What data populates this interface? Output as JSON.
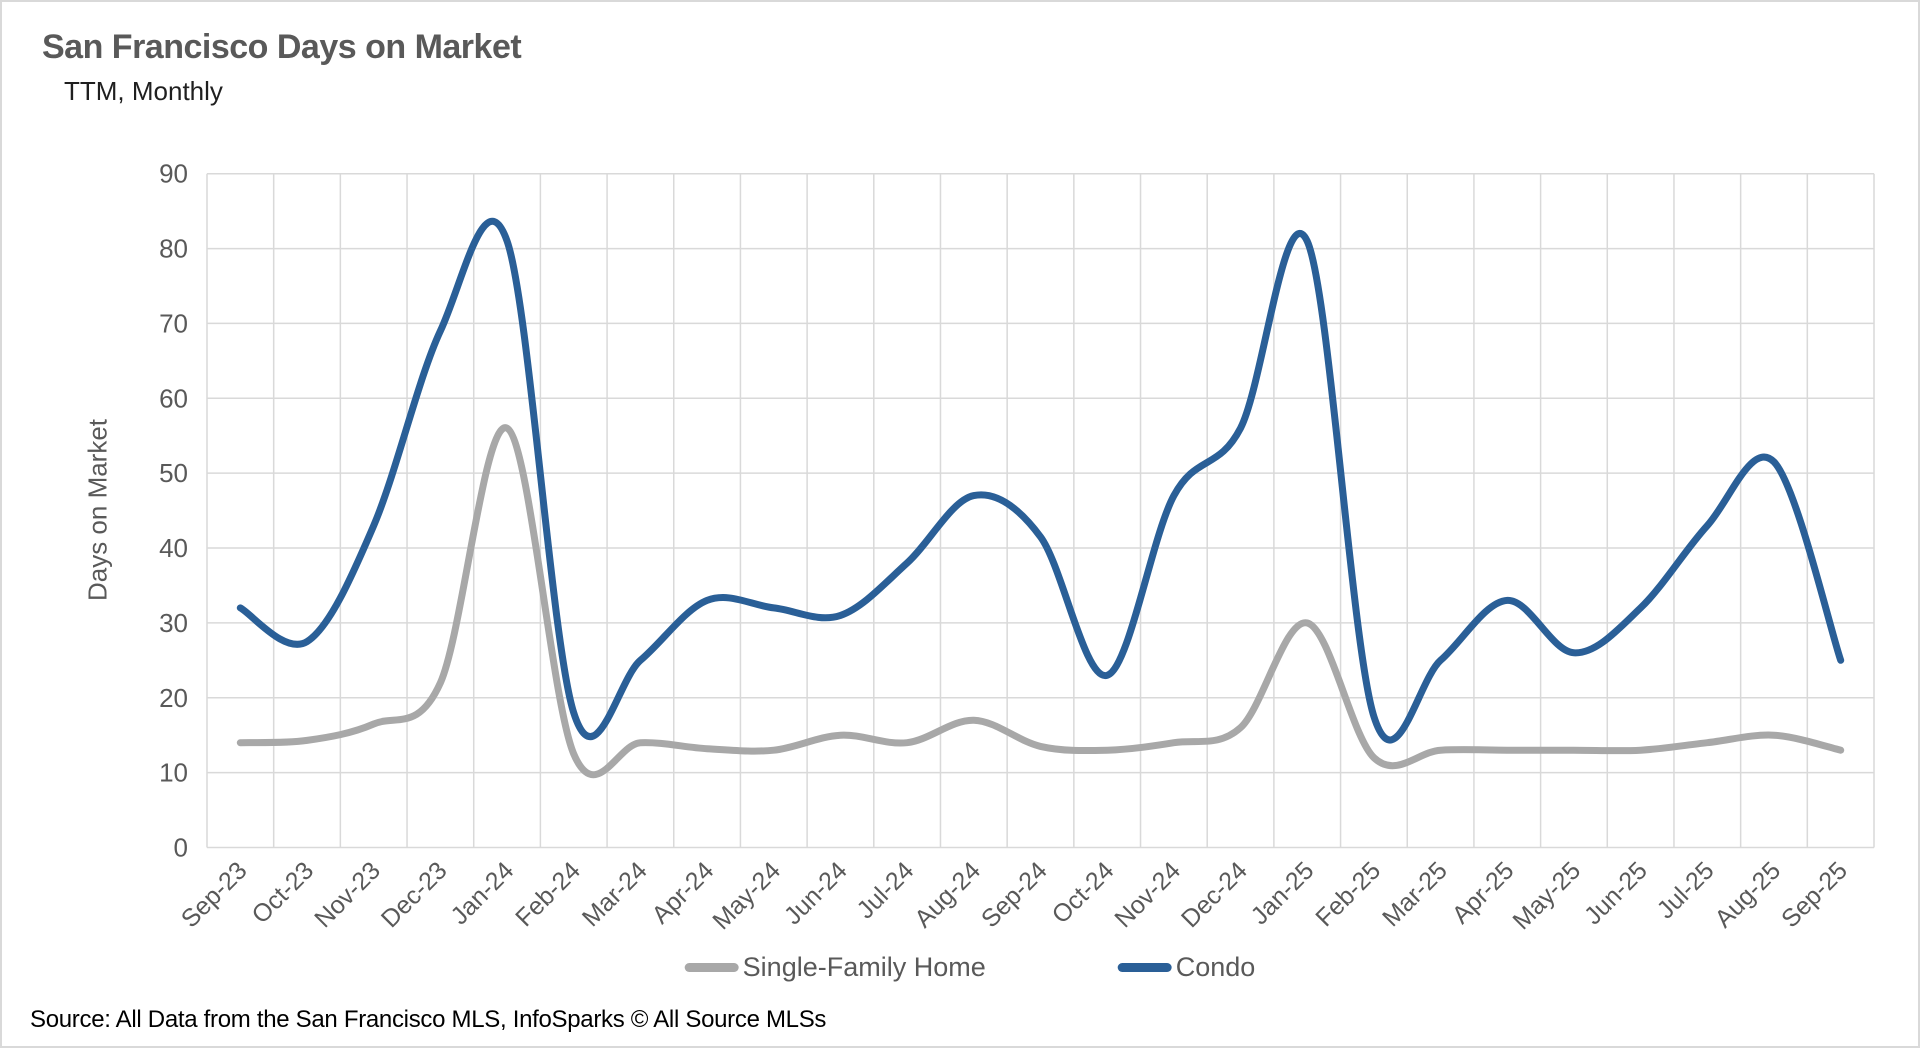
{
  "header": {
    "title": "San Francisco Days on Market",
    "subtitle": "TTM, Monthly"
  },
  "footer": {
    "source": "Source: All Data from the San Francisco MLS, InfoSparks © All Source MLSs"
  },
  "colors": {
    "single_family": "#a8a8a8",
    "condo": "#2a5f97",
    "gridline": "#d9d9d9",
    "axis_text": "#595959",
    "title_text": "#595959"
  },
  "chart_data": {
    "type": "line",
    "title": "San Francisco Days on Market",
    "subtitle": "TTM, Monthly",
    "xlabel": "",
    "ylabel": "Days on Market",
    "ylim": [
      0,
      90
    ],
    "ytick_step": 10,
    "grid": true,
    "smoothed": true,
    "legend_position": "bottom",
    "categories": [
      "Sep-23",
      "Oct-23",
      "Nov-23",
      "Dec-23",
      "Jan-24",
      "Feb-24",
      "Mar-24",
      "Apr-24",
      "May-24",
      "Jun-24",
      "Jul-24",
      "Aug-24",
      "Sep-24",
      "Oct-24",
      "Nov-24",
      "Dec-24",
      "Jan-25",
      "Feb-25",
      "Mar-25",
      "Apr-25",
      "May-25",
      "Jun-25",
      "Jul-25",
      "Aug-25",
      "Sep-25"
    ],
    "series": [
      {
        "name": "Single-Family Home",
        "color": "#a8a8a8",
        "values": [
          14,
          14.3,
          16.5,
          22,
          56,
          12.5,
          14,
          13.2,
          13,
          15,
          14,
          17,
          13.5,
          13,
          14,
          16,
          30,
          12,
          13,
          13,
          13,
          13,
          14,
          15,
          13
        ]
      },
      {
        "name": "Condo",
        "color": "#2a5f97",
        "values": [
          32,
          27.5,
          43,
          69,
          81,
          18,
          25,
          33,
          32,
          31,
          38,
          47,
          41.5,
          23,
          47,
          56,
          81,
          17.5,
          25,
          33,
          26,
          32,
          43,
          51.5,
          25
        ]
      }
    ]
  }
}
